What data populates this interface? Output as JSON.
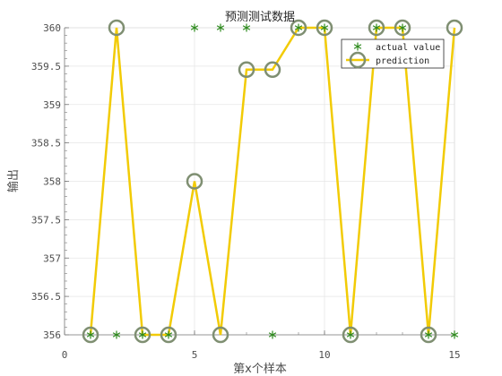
{
  "chart_data": {
    "type": "line",
    "title": "预测测试数据",
    "xlabel": "第x个样本",
    "ylabel": "输出",
    "xlim": [
      0,
      15
    ],
    "ylim": [
      356,
      360
    ],
    "xticks": [
      0,
      5,
      10,
      15
    ],
    "xtick_labels": [
      "0",
      "5",
      "10",
      "15"
    ],
    "yticks": [
      356,
      356.5,
      357,
      357.5,
      358,
      358.5,
      359,
      359.5,
      360
    ],
    "ytick_labels": [
      "356",
      "356.5",
      "357",
      "357.5",
      "358",
      "358.5",
      "359",
      "359.5",
      "360"
    ],
    "grid": true,
    "legend_position": "top-right",
    "x": [
      1,
      2,
      3,
      4,
      5,
      6,
      7,
      8,
      9,
      10,
      11,
      12,
      13,
      14,
      15
    ],
    "series": [
      {
        "name": "actual value",
        "marker": "asterisk",
        "color": "#2e8b1e",
        "values": [
          356,
          356,
          356,
          356,
          360,
          360,
          360,
          356,
          360,
          360,
          356,
          360,
          360,
          356,
          356
        ]
      },
      {
        "name": "prediction",
        "marker": "circle",
        "color": "#f2cb05",
        "marker_color": "#7f8f72",
        "values": [
          356,
          360,
          356,
          356,
          358,
          356,
          359.4545,
          359.4545,
          360,
          360,
          356,
          360,
          360,
          356,
          360
        ]
      }
    ]
  }
}
